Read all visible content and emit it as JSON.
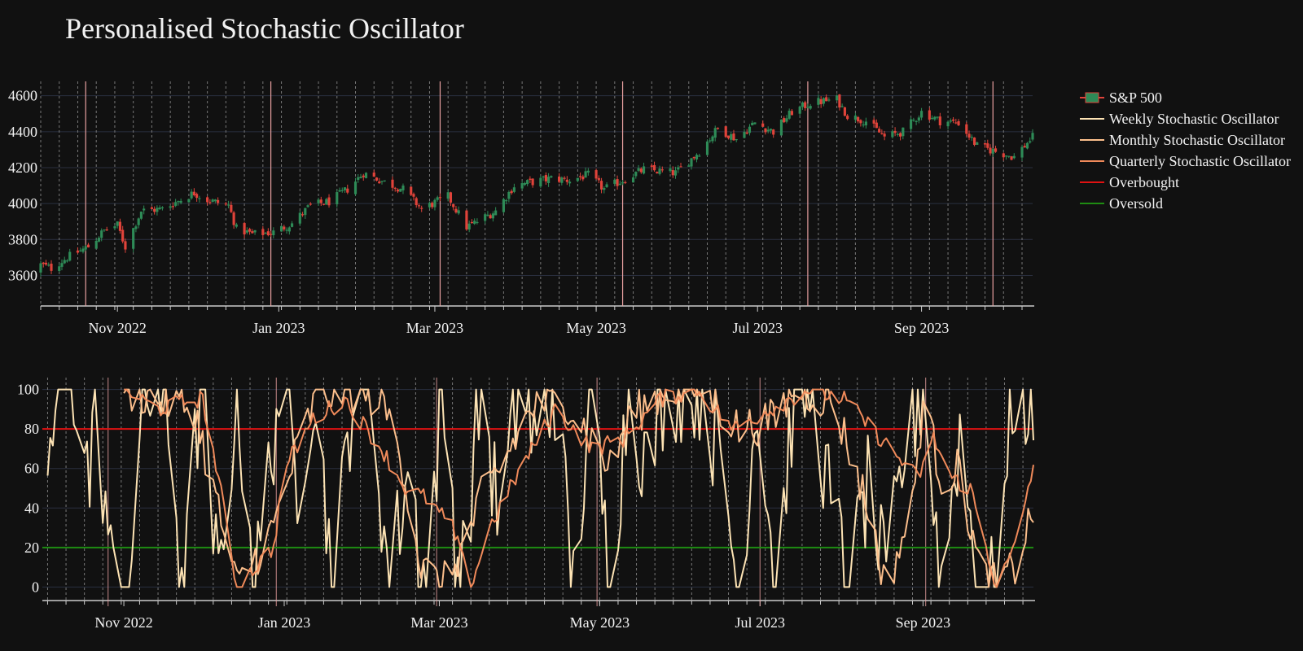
{
  "title": "Personalised Stochastic Oscillator",
  "chart_data": [
    {
      "type": "candlestick",
      "series_name": "S&P 500",
      "x_ticks": [
        "Nov 2022",
        "Jan 2023",
        "Mar 2023",
        "May 2023",
        "Jul 2023",
        "Sep 2023"
      ],
      "x_tick_dates": [
        "2022-11-01",
        "2023-01-01",
        "2023-03-01",
        "2023-05-01",
        "2023-07-01",
        "2023-09-01"
      ],
      "x_range": [
        "2022-10-01",
        "2023-10-13"
      ],
      "y_ticks": [
        3600,
        3800,
        4000,
        4200,
        4400,
        4600
      ],
      "ylim": [
        3430,
        4680
      ],
      "vertical_markers": [
        "2022-10-20",
        "2022-12-29",
        "2023-03-03",
        "2023-05-11",
        "2023-07-20",
        "2023-09-28"
      ],
      "close_anchors": [
        [
          "2022-10-03",
          3660
        ],
        [
          "2022-10-07",
          3640
        ],
        [
          "2022-10-13",
          3700
        ],
        [
          "2022-10-21",
          3760
        ],
        [
          "2022-10-27",
          3850
        ],
        [
          "2022-11-01",
          3880
        ],
        [
          "2022-11-04",
          3760
        ],
        [
          "2022-11-10",
          3960
        ],
        [
          "2022-11-18",
          3970
        ],
        [
          "2022-11-30",
          4060
        ],
        [
          "2022-12-05",
          4020
        ],
        [
          "2022-12-13",
          3990
        ],
        [
          "2022-12-16",
          3860
        ],
        [
          "2022-12-22",
          3830
        ],
        [
          "2022-12-30",
          3840
        ],
        [
          "2023-01-06",
          3890
        ],
        [
          "2023-01-13",
          3990
        ],
        [
          "2023-01-20",
          4010
        ],
        [
          "2023-01-27",
          4080
        ],
        [
          "2023-02-02",
          4170
        ],
        [
          "2023-02-10",
          4120
        ],
        [
          "2023-02-17",
          4080
        ],
        [
          "2023-02-24",
          3970
        ],
        [
          "2023-03-06",
          4040
        ],
        [
          "2023-03-13",
          3870
        ],
        [
          "2023-03-17",
          3900
        ],
        [
          "2023-03-24",
          3960
        ],
        [
          "2023-03-31",
          4100
        ],
        [
          "2023-04-14",
          4140
        ],
        [
          "2023-04-21",
          4130
        ],
        [
          "2023-04-28",
          4160
        ],
        [
          "2023-05-04",
          4080
        ],
        [
          "2023-05-11",
          4130
        ],
        [
          "2023-05-19",
          4190
        ],
        [
          "2023-05-31",
          4170
        ],
        [
          "2023-06-09",
          4290
        ],
        [
          "2023-06-16",
          4420
        ],
        [
          "2023-06-23",
          4360
        ],
        [
          "2023-06-30",
          4450
        ],
        [
          "2023-07-07",
          4400
        ],
        [
          "2023-07-14",
          4510
        ],
        [
          "2023-07-21",
          4560
        ],
        [
          "2023-07-31",
          4580
        ],
        [
          "2023-08-04",
          4490
        ],
        [
          "2023-08-11",
          4460
        ],
        [
          "2023-08-18",
          4370
        ],
        [
          "2023-08-25",
          4400
        ],
        [
          "2023-09-01",
          4510
        ],
        [
          "2023-09-08",
          4460
        ],
        [
          "2023-09-15",
          4450
        ],
        [
          "2023-09-22",
          4320
        ],
        [
          "2023-09-29",
          4290
        ],
        [
          "2023-10-06",
          4260
        ],
        [
          "2023-10-13",
          4370
        ]
      ]
    },
    {
      "type": "line",
      "x_ticks": [
        "Nov 2022",
        "Jan 2023",
        "Mar 2023",
        "May 2023",
        "Jul 2023",
        "Sep 2023"
      ],
      "x_tick_dates": [
        "2022-11-01",
        "2023-01-01",
        "2023-03-01",
        "2023-05-01",
        "2023-07-01",
        "2023-09-01"
      ],
      "y_ticks": [
        0,
        20,
        40,
        60,
        80,
        100
      ],
      "ylim": [
        -6,
        106
      ],
      "series": [
        {
          "name": "Weekly Stochastic Oscillator",
          "color": "#fde3b4",
          "kind": "weekly",
          "anchors": [
            [
              "2022-10-01",
              80
            ],
            [
              "2022-10-04",
              62
            ],
            [
              "2022-10-07",
              100
            ],
            [
              "2022-10-14",
              100
            ],
            [
              "2022-10-19",
              52
            ],
            [
              "2022-10-21",
              100
            ],
            [
              "2022-10-28",
              0
            ],
            [
              "2022-11-03",
              0
            ],
            [
              "2022-11-09",
              100
            ],
            [
              "2022-11-17",
              90
            ],
            [
              "2022-11-24",
              0
            ],
            [
              "2022-11-30",
              100
            ],
            [
              "2022-12-07",
              0
            ],
            [
              "2022-12-14",
              100
            ],
            [
              "2022-12-21",
              0
            ],
            [
              "2022-12-30",
              100
            ],
            [
              "2023-01-06",
              55
            ],
            [
              "2023-01-12",
              100
            ],
            [
              "2023-01-20",
              0
            ],
            [
              "2023-01-27",
              100
            ],
            [
              "2023-02-03",
              100
            ],
            [
              "2023-02-10",
              0
            ],
            [
              "2023-02-17",
              60
            ],
            [
              "2023-02-24",
              0
            ],
            [
              "2023-03-02",
              100
            ],
            [
              "2023-03-09",
              0
            ],
            [
              "2023-03-17",
              100
            ],
            [
              "2023-03-24",
              30
            ],
            [
              "2023-03-31",
              100
            ],
            [
              "2023-04-07",
              70
            ],
            [
              "2023-04-14",
              100
            ],
            [
              "2023-04-21",
              0
            ],
            [
              "2023-04-28",
              100
            ],
            [
              "2023-05-05",
              0
            ],
            [
              "2023-05-12",
              100
            ],
            [
              "2023-05-19",
              60
            ],
            [
              "2023-05-26",
              100
            ],
            [
              "2023-06-02",
              100
            ],
            [
              "2023-06-09",
              100
            ],
            [
              "2023-06-16",
              60
            ],
            [
              "2023-06-23",
              0
            ],
            [
              "2023-06-30",
              100
            ],
            [
              "2023-07-07",
              0
            ],
            [
              "2023-07-14",
              100
            ],
            [
              "2023-07-21",
              100
            ],
            [
              "2023-07-28",
              40
            ],
            [
              "2023-08-04",
              0
            ],
            [
              "2023-08-11",
              50
            ],
            [
              "2023-08-18",
              0
            ],
            [
              "2023-08-25",
              70
            ],
            [
              "2023-09-01",
              100
            ],
            [
              "2023-09-08",
              0
            ],
            [
              "2023-09-15",
              80
            ],
            [
              "2023-09-22",
              0
            ],
            [
              "2023-09-29",
              0
            ],
            [
              "2023-10-06",
              100
            ],
            [
              "2023-10-13",
              92
            ]
          ]
        },
        {
          "name": "Monthly Stochastic Oscillator",
          "color": "#fcbf8c",
          "kind": "monthly",
          "anchors": [
            [
              "2022-11-01",
              100
            ],
            [
              "2022-11-15",
              95
            ],
            [
              "2022-11-28",
              90
            ],
            [
              "2022-12-05",
              50
            ],
            [
              "2022-12-14",
              0
            ],
            [
              "2022-12-28",
              30
            ],
            [
              "2023-01-06",
              70
            ],
            [
              "2023-01-13",
              95
            ],
            [
              "2023-01-24",
              100
            ],
            [
              "2023-02-07",
              95
            ],
            [
              "2023-02-14",
              70
            ],
            [
              "2023-02-22",
              10
            ],
            [
              "2023-03-02",
              0
            ],
            [
              "2023-03-10",
              20
            ],
            [
              "2023-03-17",
              45
            ],
            [
              "2023-03-24",
              60
            ],
            [
              "2023-04-05",
              90
            ],
            [
              "2023-04-18",
              95
            ],
            [
              "2023-04-28",
              75
            ],
            [
              "2023-05-05",
              60
            ],
            [
              "2023-05-12",
              85
            ],
            [
              "2023-05-26",
              100
            ],
            [
              "2023-06-09",
              100
            ],
            [
              "2023-06-23",
              80
            ],
            [
              "2023-07-07",
              85
            ],
            [
              "2023-07-14",
              100
            ],
            [
              "2023-07-28",
              95
            ],
            [
              "2023-08-04",
              70
            ],
            [
              "2023-08-11",
              40
            ],
            [
              "2023-08-18",
              0
            ],
            [
              "2023-08-28",
              40
            ],
            [
              "2023-09-01",
              95
            ],
            [
              "2023-09-08",
              55
            ],
            [
              "2023-09-15",
              60
            ],
            [
              "2023-09-22",
              10
            ],
            [
              "2023-09-29",
              0
            ],
            [
              "2023-10-06",
              10
            ],
            [
              "2023-10-13",
              40
            ]
          ]
        },
        {
          "name": "Quarterly Stochastic Oscillator",
          "color": "#f08a5a",
          "kind": "quarterly",
          "anchors": [
            [
              "2022-11-01",
              100
            ],
            [
              "2022-11-14",
              90
            ],
            [
              "2022-11-28",
              95
            ],
            [
              "2022-12-01",
              95
            ],
            [
              "2022-12-07",
              55
            ],
            [
              "2022-12-14",
              0
            ],
            [
              "2022-12-28",
              20
            ],
            [
              "2023-01-01",
              60
            ],
            [
              "2023-01-12",
              85
            ],
            [
              "2023-01-24",
              95
            ],
            [
              "2023-02-07",
              70
            ],
            [
              "2023-02-16",
              50
            ],
            [
              "2023-02-24",
              45
            ],
            [
              "2023-03-06",
              30
            ],
            [
              "2023-03-13",
              0
            ],
            [
              "2023-03-20",
              30
            ],
            [
              "2023-04-01",
              60
            ],
            [
              "2023-04-14",
              90
            ],
            [
              "2023-04-28",
              70
            ],
            [
              "2023-05-10",
              75
            ],
            [
              "2023-05-24",
              95
            ],
            [
              "2023-06-07",
              100
            ],
            [
              "2023-06-21",
              80
            ],
            [
              "2023-07-05",
              90
            ],
            [
              "2023-07-19",
              100
            ],
            [
              "2023-08-02",
              95
            ],
            [
              "2023-08-16",
              75
            ],
            [
              "2023-08-30",
              55
            ],
            [
              "2023-09-05",
              75
            ],
            [
              "2023-09-12",
              55
            ],
            [
              "2023-09-19",
              50
            ],
            [
              "2023-09-29",
              0
            ],
            [
              "2023-10-06",
              20
            ],
            [
              "2023-10-13",
              62
            ]
          ]
        }
      ],
      "reference_lines": [
        {
          "name": "Overbought",
          "value": 80,
          "color": "#e01212"
        },
        {
          "name": "Oversold",
          "value": 20,
          "color": "#1e8c12"
        }
      ],
      "vertical_markers": [
        "2022-10-26",
        "2022-12-29",
        "2023-02-28",
        "2023-04-30",
        "2023-07-01",
        "2023-09-02"
      ]
    }
  ],
  "legend": [
    {
      "label": "S&P 500",
      "kind": "candle"
    },
    {
      "label": "Weekly Stochastic Oscillator",
      "color": "#fde3b4"
    },
    {
      "label": "Monthly Stochastic Oscillator",
      "color": "#fcbf8c"
    },
    {
      "label": "Quarterly Stochastic Oscillator",
      "color": "#f08a5a"
    },
    {
      "label": "Overbought",
      "color": "#e01212"
    },
    {
      "label": "Oversold",
      "color": "#1e8c12"
    }
  ],
  "colors": {
    "background": "#111111",
    "increasing": "#2e8b57",
    "decreasing": "#e0433a",
    "grid": "#2a3040"
  }
}
